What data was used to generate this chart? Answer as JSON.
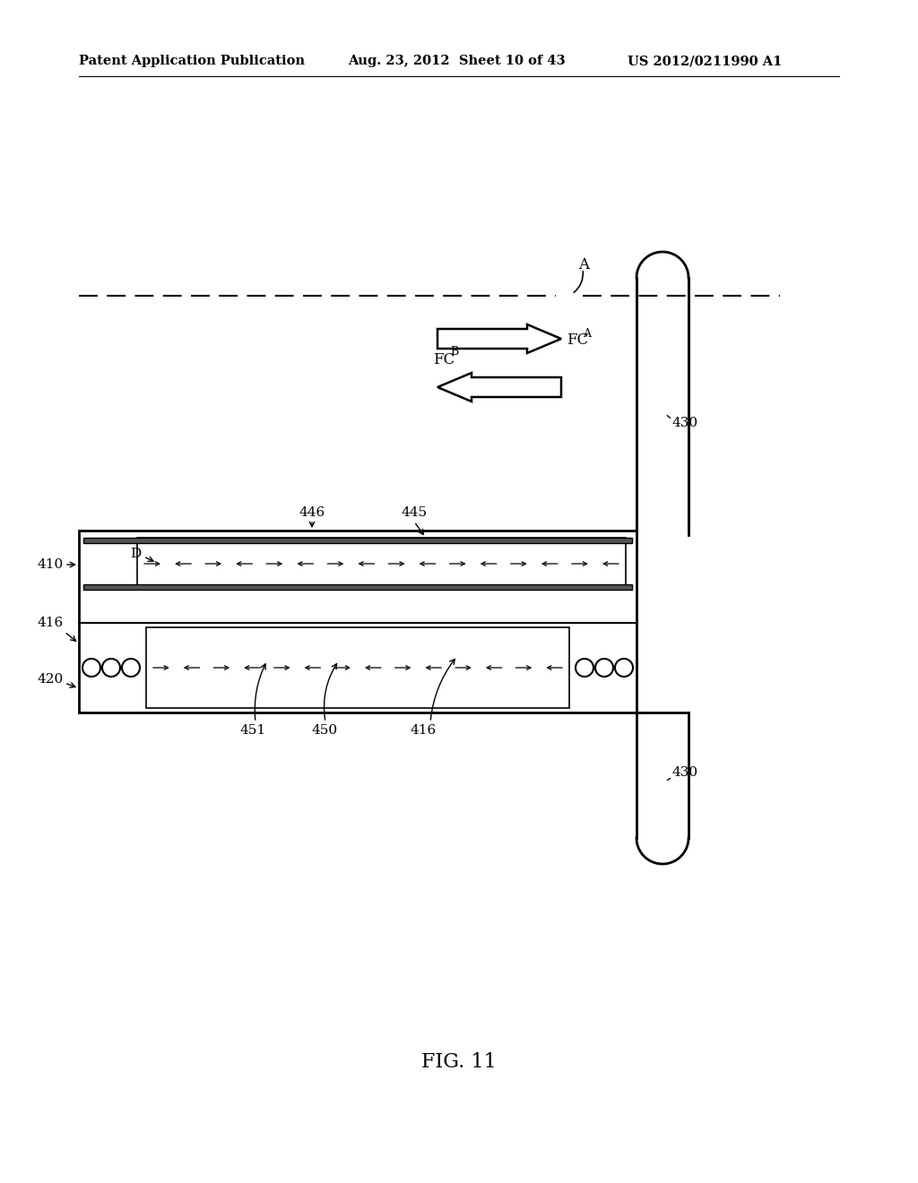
{
  "bg_color": "#ffffff",
  "header_left": "Patent Application Publication",
  "header_mid": "Aug. 23, 2012  Sheet 10 of 43",
  "header_right": "US 2012/0211990 A1",
  "fig_label": "FIG. 11",
  "label_A": "A",
  "label_D": "D",
  "label_430a": "430",
  "label_430b": "430",
  "label_410": "410",
  "label_416a": "416",
  "label_416b": "416",
  "label_420": "420",
  "label_445": "445",
  "label_446": "446",
  "label_450": "450",
  "label_451": "451"
}
